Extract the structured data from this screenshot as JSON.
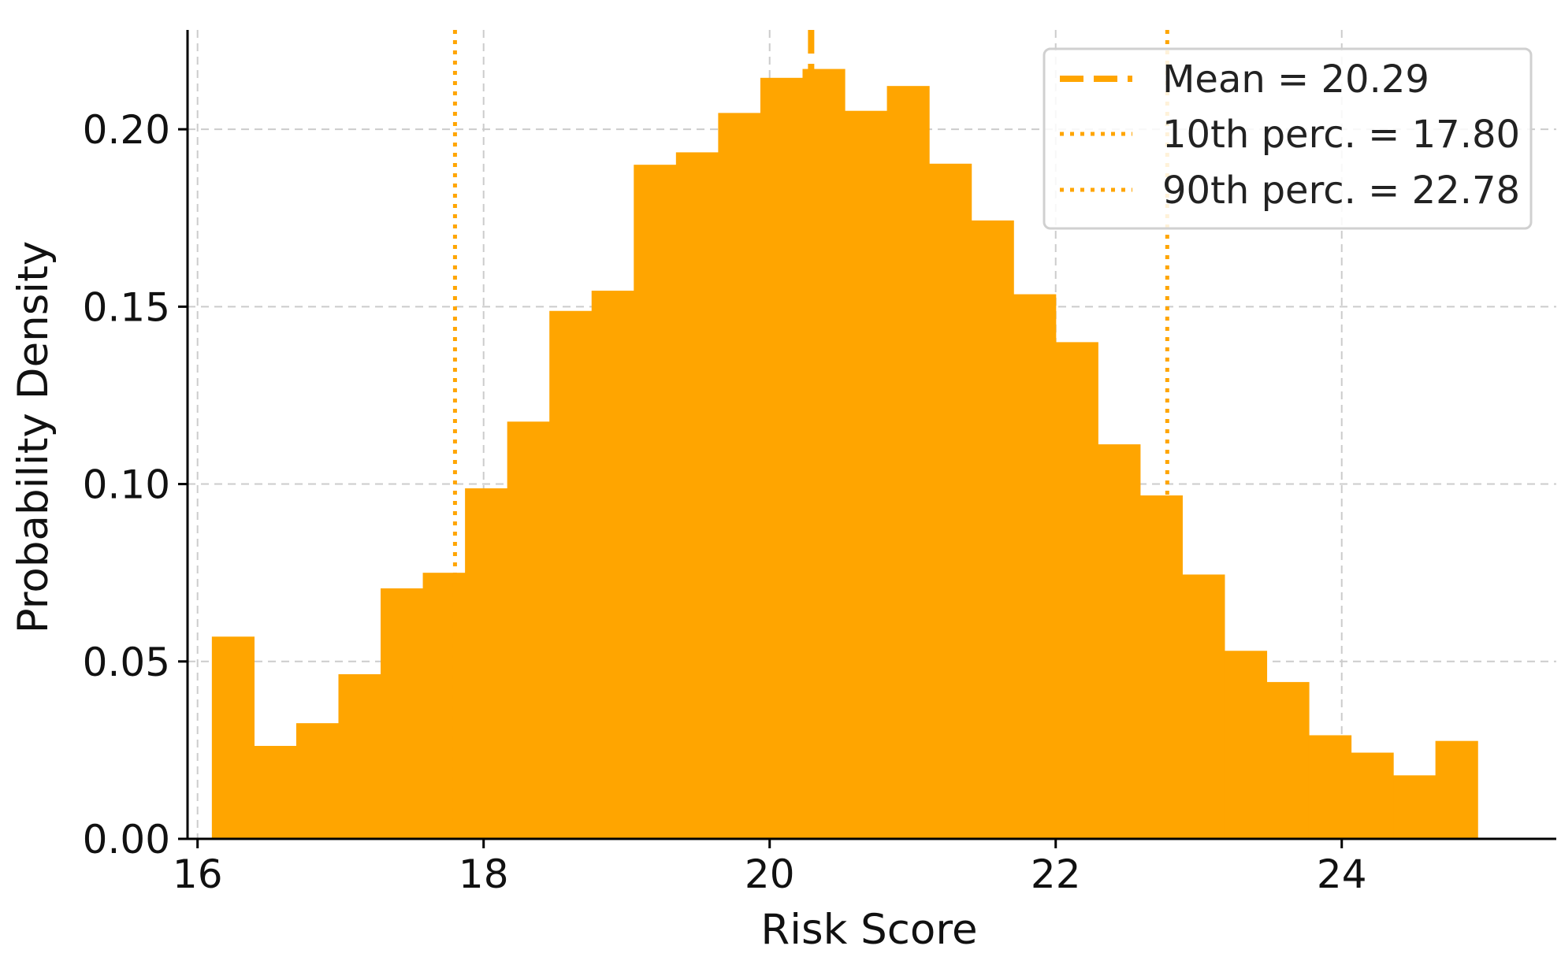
{
  "chart_data": {
    "type": "bar",
    "subtype": "histogram",
    "title": "",
    "xlabel": "Risk Score",
    "ylabel": "Probability Density",
    "xlim": [
      15.93,
      25.5
    ],
    "ylim": [
      0,
      0.228
    ],
    "xticks": [
      16,
      18,
      20,
      22,
      24
    ],
    "yticks": [
      0.0,
      0.05,
      0.1,
      0.15,
      0.2
    ],
    "xtick_labels": [
      "16",
      "18",
      "20",
      "22",
      "24"
    ],
    "ytick_labels": [
      "0.00",
      "0.05",
      "0.10",
      "0.15",
      "0.20"
    ],
    "grid": true,
    "bin_edges": [
      16.1,
      16.395,
      16.69,
      16.985,
      17.28,
      17.575,
      17.87,
      18.165,
      18.46,
      18.755,
      19.05,
      19.345,
      19.64,
      19.935,
      20.23,
      20.525,
      20.82,
      21.115,
      21.41,
      21.705,
      22.0,
      22.295,
      22.59,
      22.885,
      23.18,
      23.475,
      23.77,
      24.065,
      24.36,
      24.655,
      24.95
    ],
    "density": [
      0.057,
      0.0262,
      0.0326,
      0.0464,
      0.0706,
      0.075,
      0.0988,
      0.1176,
      0.1488,
      0.1545,
      0.19,
      0.1935,
      0.2046,
      0.2145,
      0.217,
      0.2052,
      0.2122,
      0.1903,
      0.1743,
      0.1535,
      0.14,
      0.1112,
      0.0968,
      0.0745,
      0.053,
      0.0442,
      0.0292,
      0.0243,
      0.0179,
      0.0276
    ],
    "bar_color": "#FFA500",
    "reference_lines": [
      {
        "x": 20.29,
        "style": "dashed",
        "label": "Mean = 20.29",
        "color": "#FFA500"
      },
      {
        "x": 17.8,
        "style": "dotted",
        "label": "10th perc. = 17.80",
        "color": "#FFA500"
      },
      {
        "x": 22.78,
        "style": "dotted",
        "label": "90th perc. = 22.78",
        "color": "#FFA500"
      }
    ],
    "legend": {
      "position": "top-right",
      "entries": [
        "Mean = 20.29",
        "10th perc. = 17.80",
        "90th perc. = 22.78"
      ]
    }
  }
}
